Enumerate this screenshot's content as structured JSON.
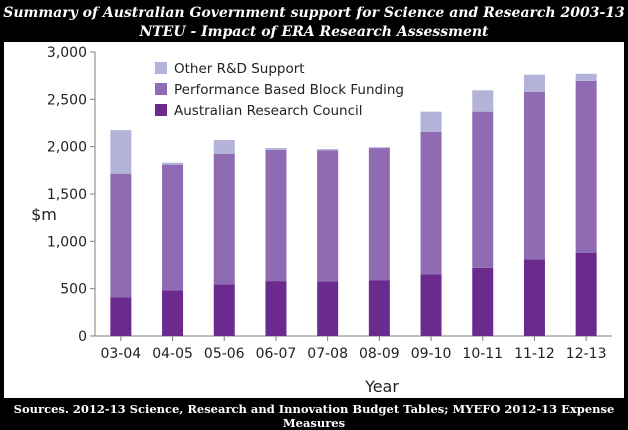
{
  "header": {
    "title_line1": "Summary of Australian Government support for Science and Research 2003-13",
    "title_line2": "NTEU - Impact of ERA Research Assessment"
  },
  "footer": {
    "source": "Sources. 2012-13 Science, Research and Innovation Budget Tables; MYEFO 2012-13 Expense Measures"
  },
  "chart_data": {
    "type": "bar",
    "stacked": true,
    "categories": [
      "03-04",
      "04-05",
      "05-06",
      "06-07",
      "07-08",
      "08-09",
      "09-10",
      "10-11",
      "11-12",
      "12-13"
    ],
    "series": [
      {
        "name": "Australian Research Council",
        "color": "#6b2a8e",
        "values": [
          410,
          480,
          545,
          580,
          575,
          590,
          650,
          720,
          810,
          880
        ]
      },
      {
        "name": "Performance Based Block Funding",
        "color": "#8e6bb3",
        "values": [
          1305,
          1330,
          1380,
          1385,
          1385,
          1395,
          1505,
          1650,
          1770,
          1815
        ]
      },
      {
        "name": "Other R&D Support",
        "color": "#b3b3d9",
        "values": [
          460,
          20,
          145,
          20,
          15,
          10,
          215,
          225,
          180,
          75
        ]
      }
    ],
    "legend_order": [
      "Other R&D Support",
      "Performance Based Block Funding",
      "Australian Research Council"
    ],
    "legend_position": "top-left",
    "xlabel": "Year",
    "ylabel": "$m",
    "ylim": [
      0,
      3000
    ],
    "yticks": [
      0,
      500,
      1000,
      1500,
      2000,
      2500,
      3000
    ],
    "ytick_labels": [
      "0",
      "500",
      "1,000",
      "1,500",
      "2,000",
      "2,500",
      "3,000"
    ],
    "grid": false
  }
}
